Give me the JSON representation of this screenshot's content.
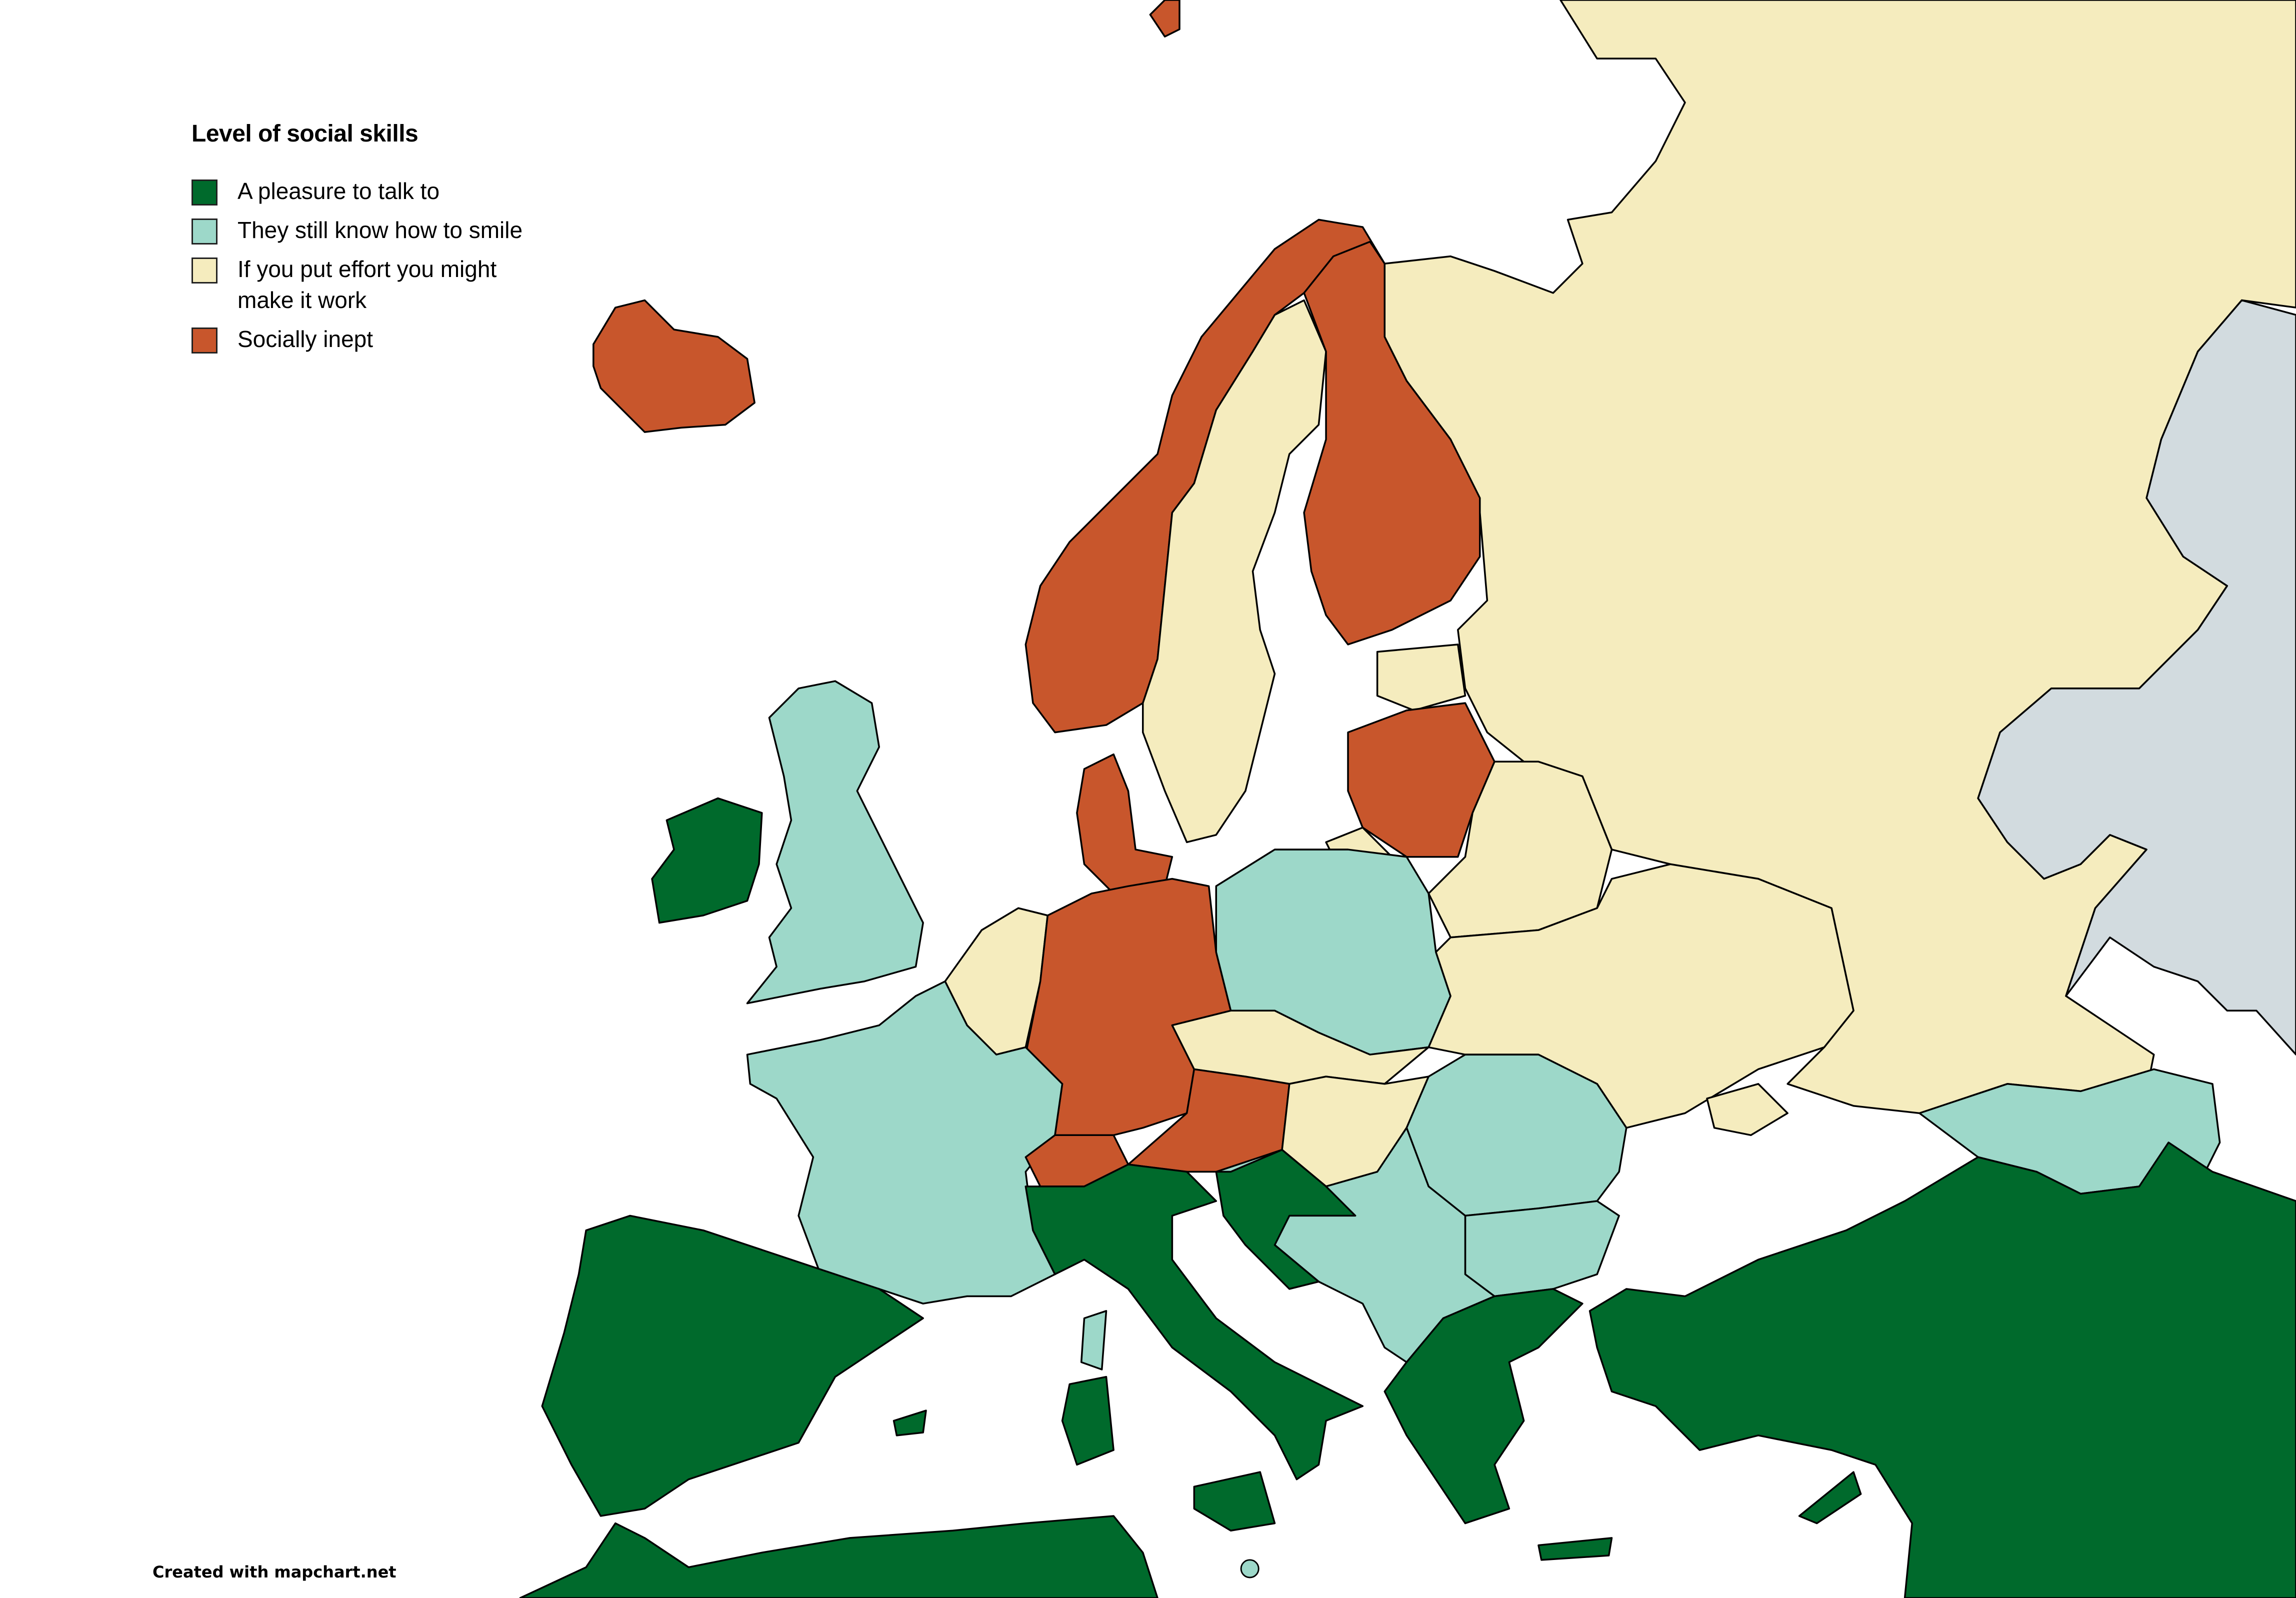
{
  "legend": {
    "title": "Level of social skills",
    "items": [
      {
        "label": "A pleasure to talk to",
        "color": "#006a2c"
      },
      {
        "label": "They still know how to smile",
        "color": "#9dd8c9"
      },
      {
        "label": "If you put effort you might make it work",
        "color": "#f5ecbe"
      },
      {
        "label": "Socially inept",
        "color": "#c8562c"
      }
    ]
  },
  "no_data_color": "#d2dbdf",
  "credit": "Created with mapchart.net"
}
